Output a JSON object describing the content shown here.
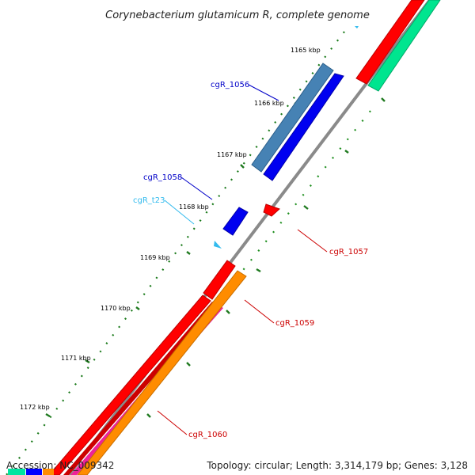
{
  "title": "Corynebacterium glutamicum R, complete genome",
  "footer": {
    "accession": "Accession: NC_009342",
    "summary": "Topology: circular; Length: 3,314,179 bp; Genes: 3,128"
  },
  "ticks": [
    "1165 kbp",
    "1166 kbp",
    "1167 kbp",
    "1168 kbp",
    "1169 kbp",
    "1170 kbp",
    "1171 kbp",
    "1172 kbp"
  ],
  "genes": [
    {
      "name": "cgR_1056",
      "color": "#0000c8",
      "strand": "+"
    },
    {
      "name": "cgR_1058",
      "color": "#0000c8",
      "strand": "+"
    },
    {
      "name": "cgR_t23",
      "color": "#33bbee",
      "strand": "+"
    },
    {
      "name": "cgR_1057",
      "color": "#cc0000",
      "strand": "-"
    },
    {
      "name": "cgR_1059",
      "color": "#cc0000",
      "strand": "-"
    },
    {
      "name": "cgR_1060",
      "color": "#cc0000",
      "strand": "-"
    }
  ],
  "colors": {
    "backbone": "#888888",
    "cds_forward": "#0000ff",
    "cds_reverse": "#ff0000",
    "cog_steelblue": "#4682b4",
    "cog_orange": "#ff8c00",
    "cog_magenta": "#ee2299",
    "cog_green": "#00e58f",
    "gc_dots": "#1a7a1a",
    "skew_dashes": "#1f8f1f"
  }
}
